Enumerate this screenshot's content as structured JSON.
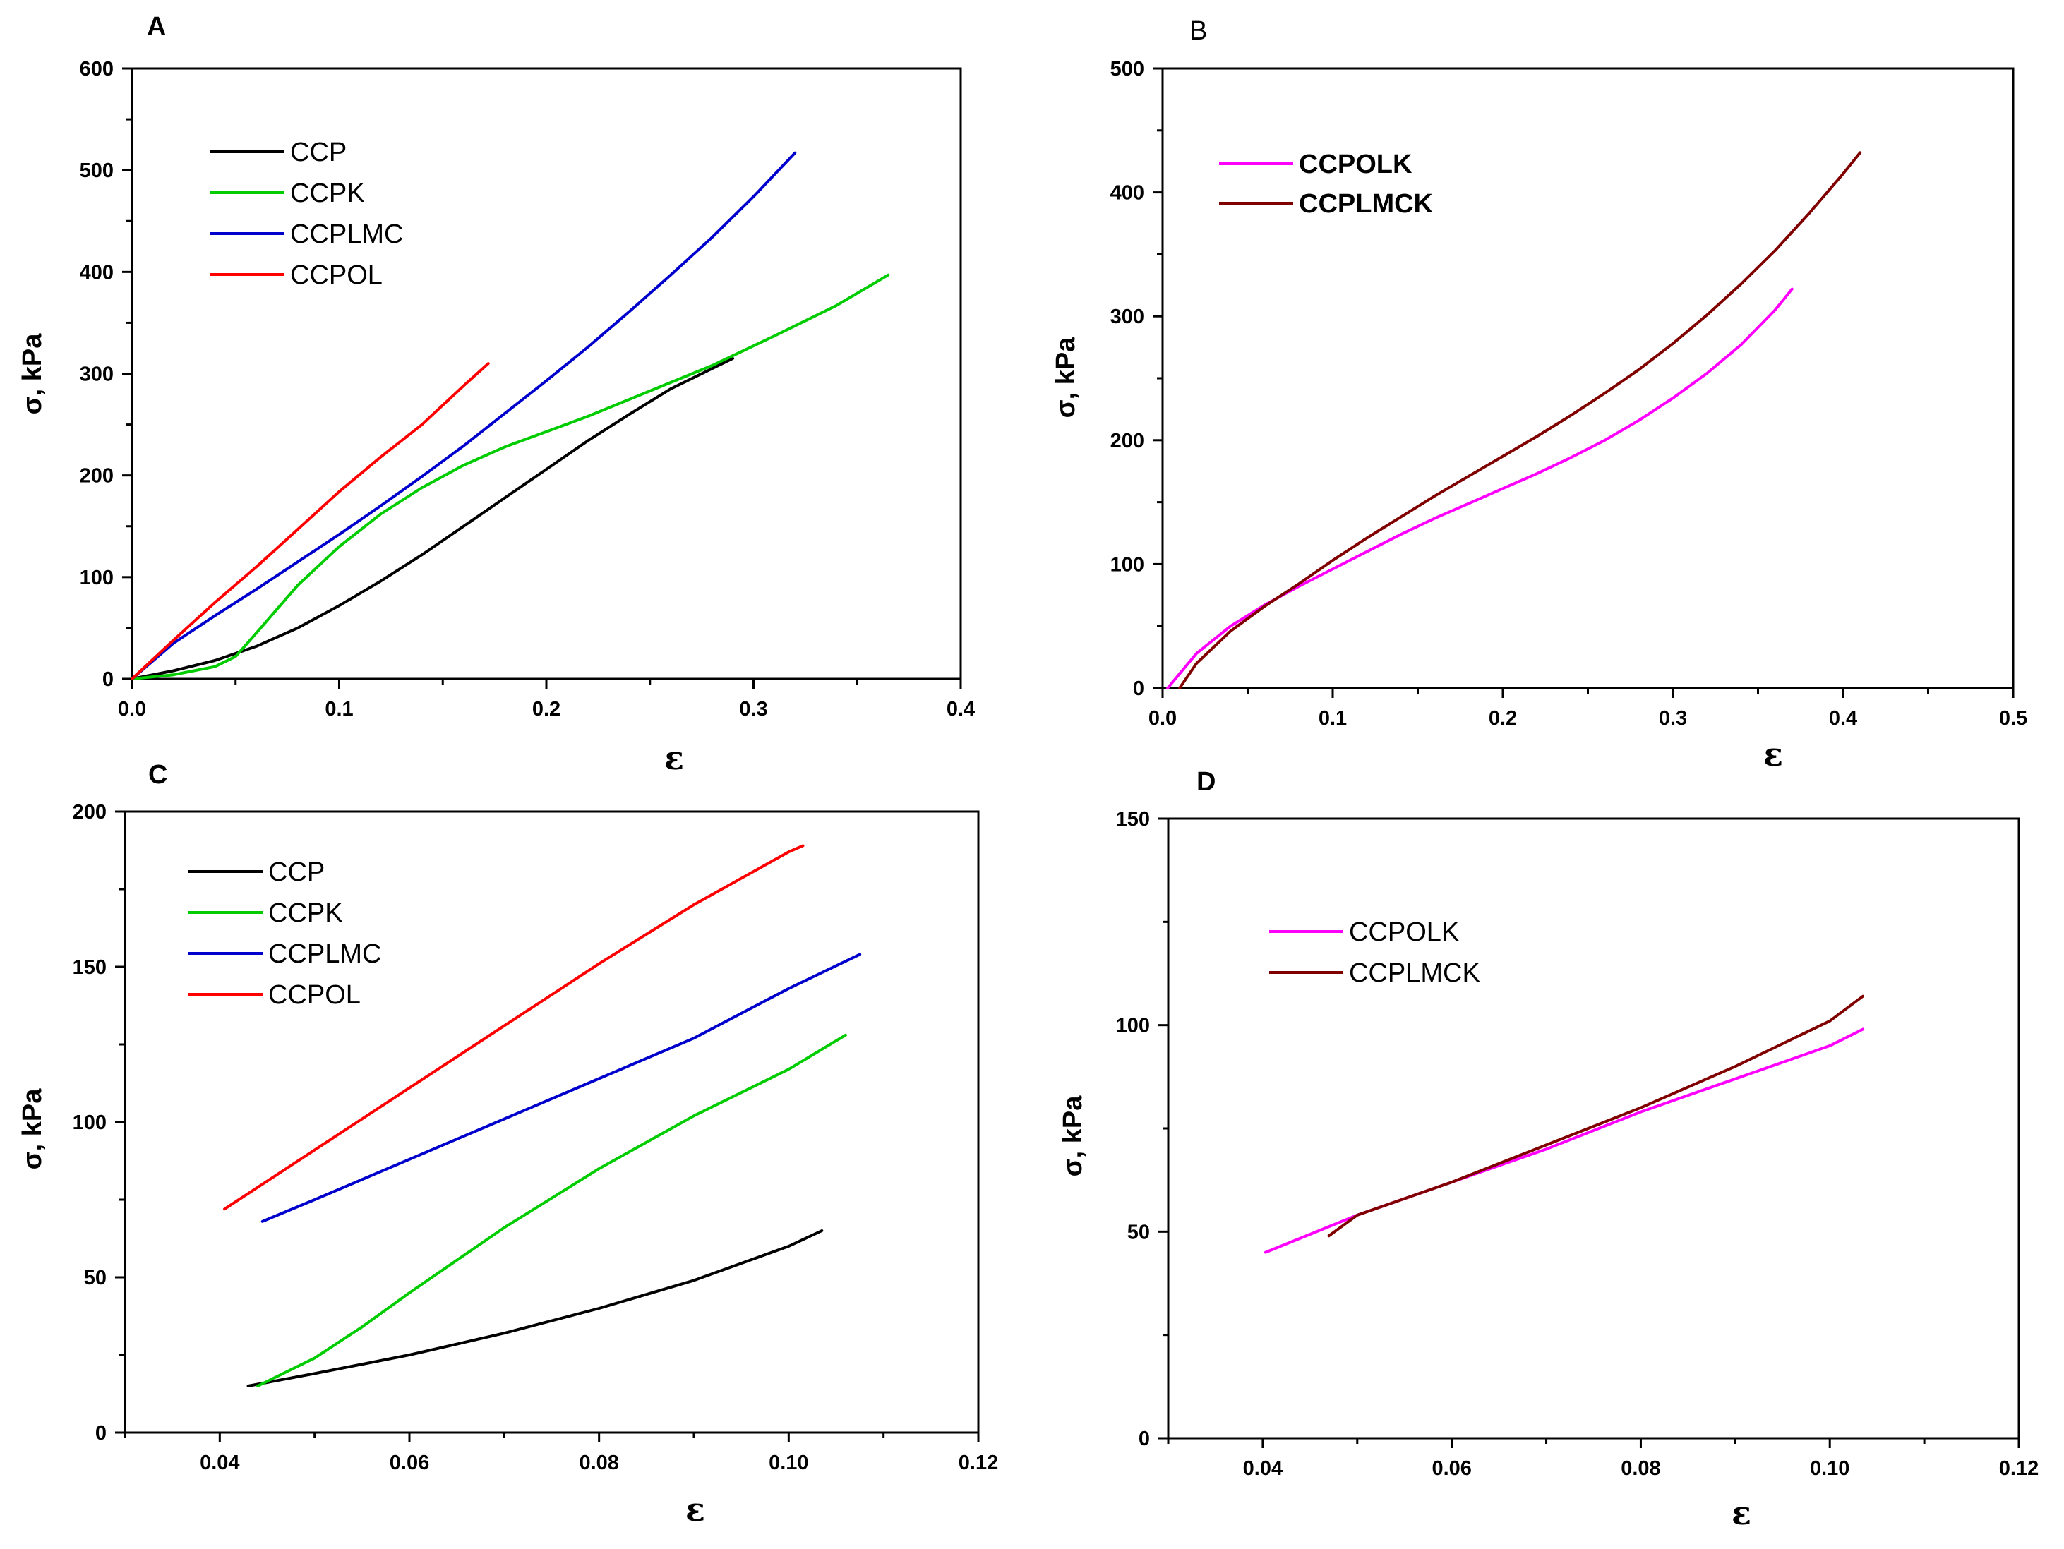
{
  "chart_data": [
    {
      "panel": "A",
      "type": "line",
      "title": "A",
      "xlabel": "ε",
      "ylabel": "σ, kPa",
      "xlim": [
        0,
        0.4
      ],
      "ylim": [
        0,
        600
      ],
      "xticks": [
        "0.0",
        "0.1",
        "0.2",
        "0.3",
        "0.4"
      ],
      "yticks": [
        "0",
        "100",
        "200",
        "300",
        "400",
        "500",
        "600"
      ],
      "legend_position": "top-left",
      "series": [
        {
          "name": "CCP",
          "color": "#000000",
          "x": [
            0.0,
            0.02,
            0.04,
            0.06,
            0.08,
            0.1,
            0.12,
            0.14,
            0.16,
            0.18,
            0.2,
            0.22,
            0.24,
            0.26,
            0.28,
            0.29
          ],
          "y": [
            0,
            8,
            18,
            32,
            50,
            72,
            96,
            122,
            150,
            178,
            206,
            234,
            260,
            285,
            305,
            315
          ]
        },
        {
          "name": "CCPK",
          "color": "#00cc00",
          "x": [
            0.0,
            0.02,
            0.04,
            0.05,
            0.06,
            0.08,
            0.1,
            0.12,
            0.14,
            0.16,
            0.18,
            0.2,
            0.22,
            0.25,
            0.28,
            0.31,
            0.34,
            0.365
          ],
          "y": [
            0,
            4,
            12,
            22,
            45,
            92,
            130,
            162,
            188,
            210,
            228,
            243,
            258,
            283,
            308,
            337,
            367,
            397
          ]
        },
        {
          "name": "CCPLMC",
          "color": "#0000cc",
          "x": [
            0.0,
            0.02,
            0.04,
            0.06,
            0.08,
            0.1,
            0.12,
            0.14,
            0.16,
            0.18,
            0.2,
            0.22,
            0.24,
            0.26,
            0.28,
            0.3,
            0.32
          ],
          "y": [
            0,
            35,
            62,
            88,
            115,
            142,
            170,
            199,
            229,
            261,
            293,
            326,
            361,
            397,
            434,
            474,
            517
          ]
        },
        {
          "name": "CCPOL",
          "color": "#ff0000",
          "x": [
            0.0,
            0.02,
            0.04,
            0.06,
            0.08,
            0.1,
            0.12,
            0.14,
            0.16,
            0.172
          ],
          "y": [
            0,
            38,
            75,
            110,
            147,
            184,
            218,
            250,
            288,
            310
          ]
        }
      ]
    },
    {
      "panel": "B",
      "type": "line",
      "title": "B",
      "xlabel": "ε",
      "ylabel": "σ, kPa",
      "xlim": [
        0,
        0.5
      ],
      "ylim": [
        0,
        500
      ],
      "xticks": [
        "0.0",
        "0.1",
        "0.2",
        "0.3",
        "0.4",
        "0.5"
      ],
      "yticks": [
        "0",
        "100",
        "200",
        "300",
        "400",
        "500"
      ],
      "legend_position": "top-left",
      "series": [
        {
          "name": "CCPOLK",
          "color": "#ff00ff",
          "x": [
            0.003,
            0.02,
            0.04,
            0.06,
            0.08,
            0.1,
            0.12,
            0.14,
            0.16,
            0.18,
            0.2,
            0.22,
            0.24,
            0.26,
            0.28,
            0.3,
            0.32,
            0.34,
            0.36,
            0.37
          ],
          "y": [
            0,
            28,
            50,
            67,
            82,
            96,
            110,
            124,
            137,
            149,
            161,
            173,
            186,
            200,
            216,
            234,
            254,
            277,
            305,
            322
          ]
        },
        {
          "name": "CCPLMCK",
          "color": "#800000",
          "x": [
            0.01,
            0.02,
            0.04,
            0.06,
            0.08,
            0.1,
            0.12,
            0.14,
            0.16,
            0.18,
            0.2,
            0.22,
            0.24,
            0.26,
            0.28,
            0.3,
            0.32,
            0.34,
            0.36,
            0.38,
            0.4,
            0.41
          ],
          "y": [
            0,
            20,
            46,
            66,
            84,
            103,
            121,
            138,
            155,
            171,
            187,
            203,
            220,
            238,
            257,
            278,
            301,
            326,
            353,
            383,
            415,
            432
          ]
        }
      ]
    },
    {
      "panel": "C",
      "type": "line",
      "title": "C",
      "xlabel": "ε",
      "ylabel": "σ, kPa",
      "xlim": [
        0.03,
        0.12
      ],
      "ylim": [
        0,
        200
      ],
      "xticks": [
        "0.04",
        "0.06",
        "0.08",
        "0.10",
        "0.12"
      ],
      "xtick_values": [
        0.04,
        0.06,
        0.08,
        0.1,
        0.12
      ],
      "yticks": [
        "0",
        "50",
        "100",
        "150",
        "200"
      ],
      "legend_position": "top-left",
      "series": [
        {
          "name": "CCP",
          "color": "#000000",
          "x": [
            0.043,
            0.05,
            0.06,
            0.07,
            0.08,
            0.09,
            0.1,
            0.1035
          ],
          "y": [
            15,
            19,
            25,
            32,
            40,
            49,
            60,
            65
          ]
        },
        {
          "name": "CCPK",
          "color": "#00cc00",
          "x": [
            0.044,
            0.05,
            0.055,
            0.06,
            0.07,
            0.08,
            0.09,
            0.1,
            0.106
          ],
          "y": [
            15,
            24,
            34,
            45,
            66,
            85,
            102,
            117,
            128
          ]
        },
        {
          "name": "CCPLMC",
          "color": "#0000cc",
          "x": [
            0.0445,
            0.05,
            0.06,
            0.07,
            0.08,
            0.09,
            0.1,
            0.1075
          ],
          "y": [
            68,
            75,
            88,
            101,
            114,
            127,
            143,
            154
          ]
        },
        {
          "name": "CCPOL",
          "color": "#ff0000",
          "x": [
            0.0405,
            0.05,
            0.06,
            0.07,
            0.08,
            0.09,
            0.1,
            0.1015
          ],
          "y": [
            72,
            91,
            111,
            131,
            151,
            170,
            187,
            189
          ]
        }
      ]
    },
    {
      "panel": "D",
      "type": "line",
      "title": "D",
      "xlabel": "ε",
      "ylabel": "σ, kPa",
      "xlim": [
        0.03,
        0.12
      ],
      "ylim": [
        0,
        150
      ],
      "xticks": [
        "0.04",
        "0.06",
        "0.08",
        "0.10",
        "0.12"
      ],
      "xtick_values": [
        0.04,
        0.06,
        0.08,
        0.1,
        0.12
      ],
      "yticks": [
        "0",
        "50",
        "100",
        "150"
      ],
      "legend_position": "top-left",
      "series": [
        {
          "name": "CCPOLK",
          "color": "#ff00ff",
          "x": [
            0.0403,
            0.05,
            0.06,
            0.07,
            0.08,
            0.09,
            0.1,
            0.1035
          ],
          "y": [
            45,
            54,
            62,
            70,
            79,
            87,
            95,
            99
          ]
        },
        {
          "name": "CCPLMCK",
          "color": "#800000",
          "x": [
            0.047,
            0.05,
            0.06,
            0.07,
            0.08,
            0.09,
            0.1,
            0.1035
          ],
          "y": [
            49,
            54,
            62,
            71,
            80,
            90,
            101,
            107
          ]
        }
      ]
    }
  ]
}
